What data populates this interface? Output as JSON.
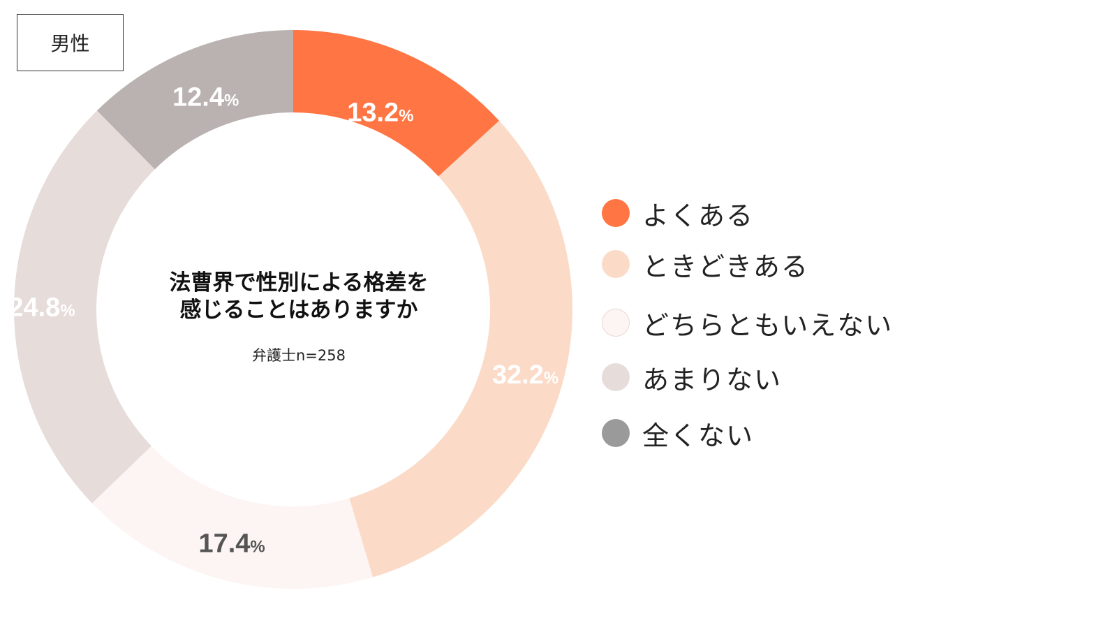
{
  "tag": "男性",
  "center": {
    "line1": "法曹界で性別による格差を",
    "line2": "感じることはありますか",
    "note": "弁護士n=258"
  },
  "colors": {
    "よくある": "#ff7543",
    "ときどきある": "#fbdbc8",
    "どちらともいえない": "#fdf5f3",
    "あまりない": "#e6dcda",
    "全くない": "#bab2b1",
    "legend_全くない": "#9a9a9a",
    "label_light": "#ffffff",
    "label_dark": "#555555"
  },
  "chart_data": {
    "type": "pie",
    "donut": true,
    "unit": "%",
    "legend_position": "right",
    "categories": [
      "よくある",
      "ときどきある",
      "どちらともいえない",
      "あまりない",
      "全くない"
    ],
    "values": [
      13.2,
      32.2,
      17.4,
      24.8,
      12.4
    ],
    "value_labels": [
      "13.2",
      "32.2",
      "17.4",
      "24.8",
      "12.4"
    ]
  }
}
